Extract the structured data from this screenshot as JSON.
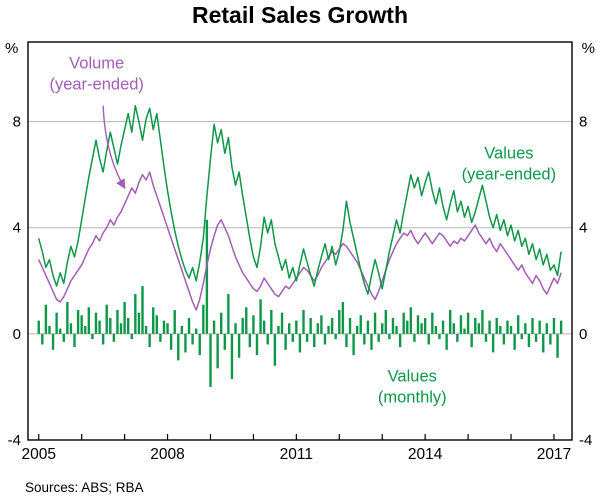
{
  "page": {
    "title": "Retail Sales Growth",
    "sources": "Sources: ABS; RBA"
  },
  "chart_data": {
    "type": "mixed",
    "title": "Retail Sales Growth",
    "unit": "%",
    "frequency": "monthly",
    "x_start": "2005-01",
    "xlim": [
      2004.75,
      2017.42
    ],
    "ylim": [
      -4,
      11
    ],
    "yticks": [
      -4,
      0,
      4,
      8
    ],
    "xticks_labeled": [
      2005,
      2008,
      2011,
      2014,
      2017
    ],
    "xticks_minor_every_year": true,
    "grid": "horizontal",
    "colors": {
      "green": "#0e9749",
      "purple": "#a25eb5",
      "grid": "#b5b5b5",
      "axis": "#000000"
    },
    "series": [
      {
        "name": "Values (year-ended)",
        "type": "line",
        "color": "#0e9749",
        "values": [
          3.6,
          3.1,
          2.5,
          2.8,
          2.2,
          1.8,
          2.3,
          1.9,
          2.7,
          3.3,
          2.9,
          3.5,
          4.3,
          5.1,
          5.9,
          6.6,
          7.3,
          6.6,
          6.1,
          6.9,
          7.6,
          7.0,
          6.4,
          7.1,
          7.7,
          8.3,
          7.6,
          8.6,
          8.0,
          7.3,
          8.1,
          8.5,
          7.7,
          8.3,
          7.3,
          6.3,
          5.4,
          4.6,
          3.9,
          3.3,
          2.8,
          2.4,
          2.1,
          2.5,
          2.0,
          2.7,
          3.6,
          5.2,
          6.6,
          7.9,
          7.2,
          7.7,
          6.8,
          7.4,
          6.3,
          5.6,
          6.1,
          5.2,
          4.4,
          3.6,
          2.9,
          2.5,
          3.3,
          4.4,
          3.8,
          4.3,
          3.4,
          2.9,
          2.4,
          2.8,
          2.1,
          2.5,
          2.0,
          2.6,
          3.2,
          2.7,
          2.2,
          1.8,
          2.4,
          2.9,
          3.4,
          2.8,
          3.3,
          2.6,
          3.1,
          3.9,
          5.0,
          4.2,
          3.6,
          3.0,
          2.4,
          1.9,
          1.5,
          2.2,
          2.8,
          2.3,
          1.7,
          2.4,
          3.1,
          3.7,
          4.3,
          3.8,
          4.6,
          5.3,
          6.0,
          5.5,
          5.9,
          5.2,
          5.7,
          6.1,
          5.4,
          4.9,
          5.5,
          4.8,
          4.3,
          4.9,
          5.4,
          4.6,
          5.0,
          4.4,
          4.8,
          4.2,
          4.6,
          5.1,
          5.6,
          5.0,
          4.4,
          4.0,
          4.5,
          3.9,
          4.3,
          3.7,
          4.1,
          3.5,
          3.9,
          3.3,
          3.6,
          3.0,
          3.4,
          2.8,
          3.2,
          2.6,
          3.0,
          2.4,
          2.6,
          2.2,
          3.1
        ]
      },
      {
        "name": "Volume (year-ended)",
        "type": "line",
        "color": "#a25eb5",
        "values": [
          2.8,
          2.5,
          2.2,
          1.9,
          1.6,
          1.3,
          1.2,
          1.4,
          1.7,
          2.0,
          2.2,
          2.4,
          2.6,
          2.9,
          3.2,
          3.4,
          3.7,
          3.5,
          3.8,
          4.0,
          4.3,
          4.1,
          4.4,
          4.6,
          4.9,
          5.2,
          5.5,
          5.3,
          5.7,
          6.0,
          5.8,
          6.1,
          5.6,
          5.2,
          4.8,
          4.4,
          4.0,
          3.6,
          3.2,
          2.8,
          2.4,
          2.0,
          1.6,
          1.2,
          0.9,
          1.3,
          1.9,
          2.6,
          3.2,
          3.7,
          4.1,
          4.3,
          4.0,
          3.7,
          3.3,
          2.9,
          2.6,
          2.3,
          2.1,
          1.9,
          1.7,
          1.6,
          1.8,
          2.1,
          1.9,
          1.7,
          1.5,
          1.4,
          1.6,
          1.8,
          1.7,
          1.9,
          2.1,
          2.3,
          2.5,
          2.4,
          2.2,
          2.0,
          2.2,
          2.5,
          2.7,
          2.9,
          3.1,
          3.0,
          3.2,
          3.4,
          3.3,
          3.1,
          2.9,
          2.7,
          2.4,
          2.1,
          1.8,
          1.5,
          1.3,
          1.6,
          2.0,
          2.4,
          2.8,
          3.1,
          3.4,
          3.6,
          3.8,
          3.7,
          3.9,
          3.6,
          3.4,
          3.6,
          3.8,
          3.6,
          3.4,
          3.6,
          3.8,
          3.7,
          3.5,
          3.3,
          3.5,
          3.4,
          3.6,
          3.5,
          3.7,
          3.9,
          4.1,
          3.8,
          3.6,
          3.4,
          3.6,
          3.3,
          3.1,
          3.4,
          3.2,
          3.0,
          2.8,
          2.6,
          2.4,
          2.6,
          2.3,
          2.1,
          1.9,
          2.2,
          2.0,
          1.7,
          1.5,
          1.8,
          2.1,
          1.9,
          2.3
        ]
      },
      {
        "name": "Values (monthly)",
        "type": "bar",
        "color": "#0e9749",
        "values": [
          0.5,
          -0.4,
          1.1,
          0.3,
          -0.6,
          0.8,
          0.2,
          -0.3,
          1.2,
          0.4,
          -0.5,
          0.9,
          0.7,
          0.3,
          1.0,
          -0.2,
          0.8,
          0.5,
          -0.4,
          1.1,
          0.6,
          -0.3,
          0.9,
          0.4,
          1.2,
          0.6,
          -0.2,
          1.5,
          0.8,
          1.8,
          0.3,
          -0.5,
          1.0,
          0.7,
          -0.3,
          0.5,
          0.4,
          -0.6,
          0.9,
          -1.0,
          0.3,
          -0.7,
          0.6,
          -0.4,
          0.2,
          -0.8,
          1.1,
          4.3,
          -2.0,
          0.5,
          -1.3,
          0.8,
          -0.6,
          1.5,
          -1.7,
          0.4,
          -0.9,
          0.6,
          1.0,
          -0.5,
          0.7,
          -0.8,
          1.3,
          0.5,
          -0.4,
          0.9,
          -1.2,
          0.3,
          0.8,
          -0.6,
          0.4,
          -0.3,
          0.5,
          -0.7,
          0.9,
          -0.3,
          0.6,
          -0.5,
          0.4,
          0.7,
          -0.4,
          0.3,
          0.6,
          -0.2,
          0.9,
          1.2,
          -0.5,
          0.6,
          -0.8,
          0.3,
          0.7,
          -0.4,
          0.5,
          -0.6,
          0.8,
          -0.3,
          0.4,
          0.9,
          -0.2,
          0.6,
          0.3,
          -0.5,
          0.8,
          0.5,
          1.0,
          -0.3,
          0.7,
          0.4,
          0.6,
          -0.4,
          0.8,
          0.3,
          -0.2,
          0.5,
          -0.6,
          0.9,
          0.4,
          -0.3,
          0.7,
          0.2,
          0.8,
          -0.5,
          0.6,
          0.4,
          0.9,
          -0.3,
          0.5,
          -0.7,
          0.6,
          0.3,
          -0.4,
          0.5,
          0.3,
          -0.6,
          0.7,
          -0.2,
          0.4,
          -0.5,
          0.6,
          -0.3,
          0.5,
          -0.7,
          0.4,
          -0.4,
          0.6,
          -0.9,
          0.5
        ]
      }
    ],
    "annotations": [
      {
        "id": "volume-label",
        "lines": [
          "Volume",
          "(year-ended)"
        ],
        "color": "#a25eb5",
        "x": 2006.35,
        "y": 10.0,
        "arrow": {
          "from": [
            2006.5,
            8.6
          ],
          "to": [
            2007.0,
            5.5
          ]
        }
      },
      {
        "id": "values-yearended-label",
        "lines": [
          "Values",
          "(year-ended)"
        ],
        "color": "#0e9749",
        "x": 2015.95,
        "y": 6.6
      },
      {
        "id": "values-monthly-label",
        "lines": [
          "Values",
          "(monthly)"
        ],
        "color": "#0e9749",
        "x": 2013.7,
        "y": -1.8
      }
    ],
    "sources": "Sources: ABS; RBA"
  }
}
